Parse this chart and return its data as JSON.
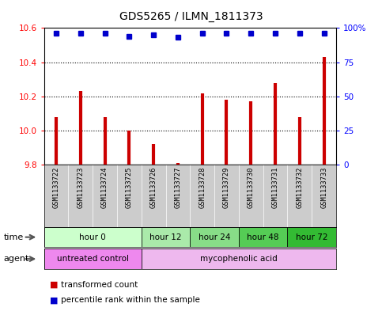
{
  "title": "GDS5265 / ILMN_1811373",
  "samples": [
    "GSM1133722",
    "GSM1133723",
    "GSM1133724",
    "GSM1133725",
    "GSM1133726",
    "GSM1133727",
    "GSM1133728",
    "GSM1133729",
    "GSM1133730",
    "GSM1133731",
    "GSM1133732",
    "GSM1133733"
  ],
  "bar_values": [
    10.08,
    10.23,
    10.08,
    10.0,
    9.92,
    9.81,
    10.22,
    10.18,
    10.17,
    10.28,
    10.08,
    10.43
  ],
  "percentile_values": [
    96,
    96,
    96,
    94,
    95,
    93,
    96,
    96,
    96,
    96,
    96,
    96
  ],
  "ylim_left": [
    9.8,
    10.6
  ],
  "ylim_right": [
    0,
    100
  ],
  "yticks_left": [
    9.8,
    10.0,
    10.2,
    10.4,
    10.6
  ],
  "yticks_right": [
    0,
    25,
    50,
    75,
    100
  ],
  "ytick_labels_right": [
    "0",
    "25",
    "50",
    "75",
    "100%"
  ],
  "bar_color": "#cc0000",
  "percentile_color": "#0000cc",
  "bar_bottom": 9.8,
  "dotted_line_y": [
    10.0,
    10.2,
    10.4
  ],
  "time_groups": [
    {
      "label": "hour 0",
      "start": 0,
      "end": 4,
      "color": "#ccffcc"
    },
    {
      "label": "hour 12",
      "start": 4,
      "end": 6,
      "color": "#aaeaaa"
    },
    {
      "label": "hour 24",
      "start": 6,
      "end": 8,
      "color": "#88dd88"
    },
    {
      "label": "hour 48",
      "start": 8,
      "end": 10,
      "color": "#55cc55"
    },
    {
      "label": "hour 72",
      "start": 10,
      "end": 12,
      "color": "#33bb33"
    }
  ],
  "agent_groups": [
    {
      "label": "untreated control",
      "start": 0,
      "end": 4,
      "color": "#ee88ee"
    },
    {
      "label": "mycophenolic acid",
      "start": 4,
      "end": 12,
      "color": "#eeb8ee"
    }
  ],
  "legend_red_label": "transformed count",
  "legend_blue_label": "percentile rank within the sample",
  "background_color": "#ffffff",
  "plot_bg": "#ffffff",
  "sample_bg": "#cccccc"
}
